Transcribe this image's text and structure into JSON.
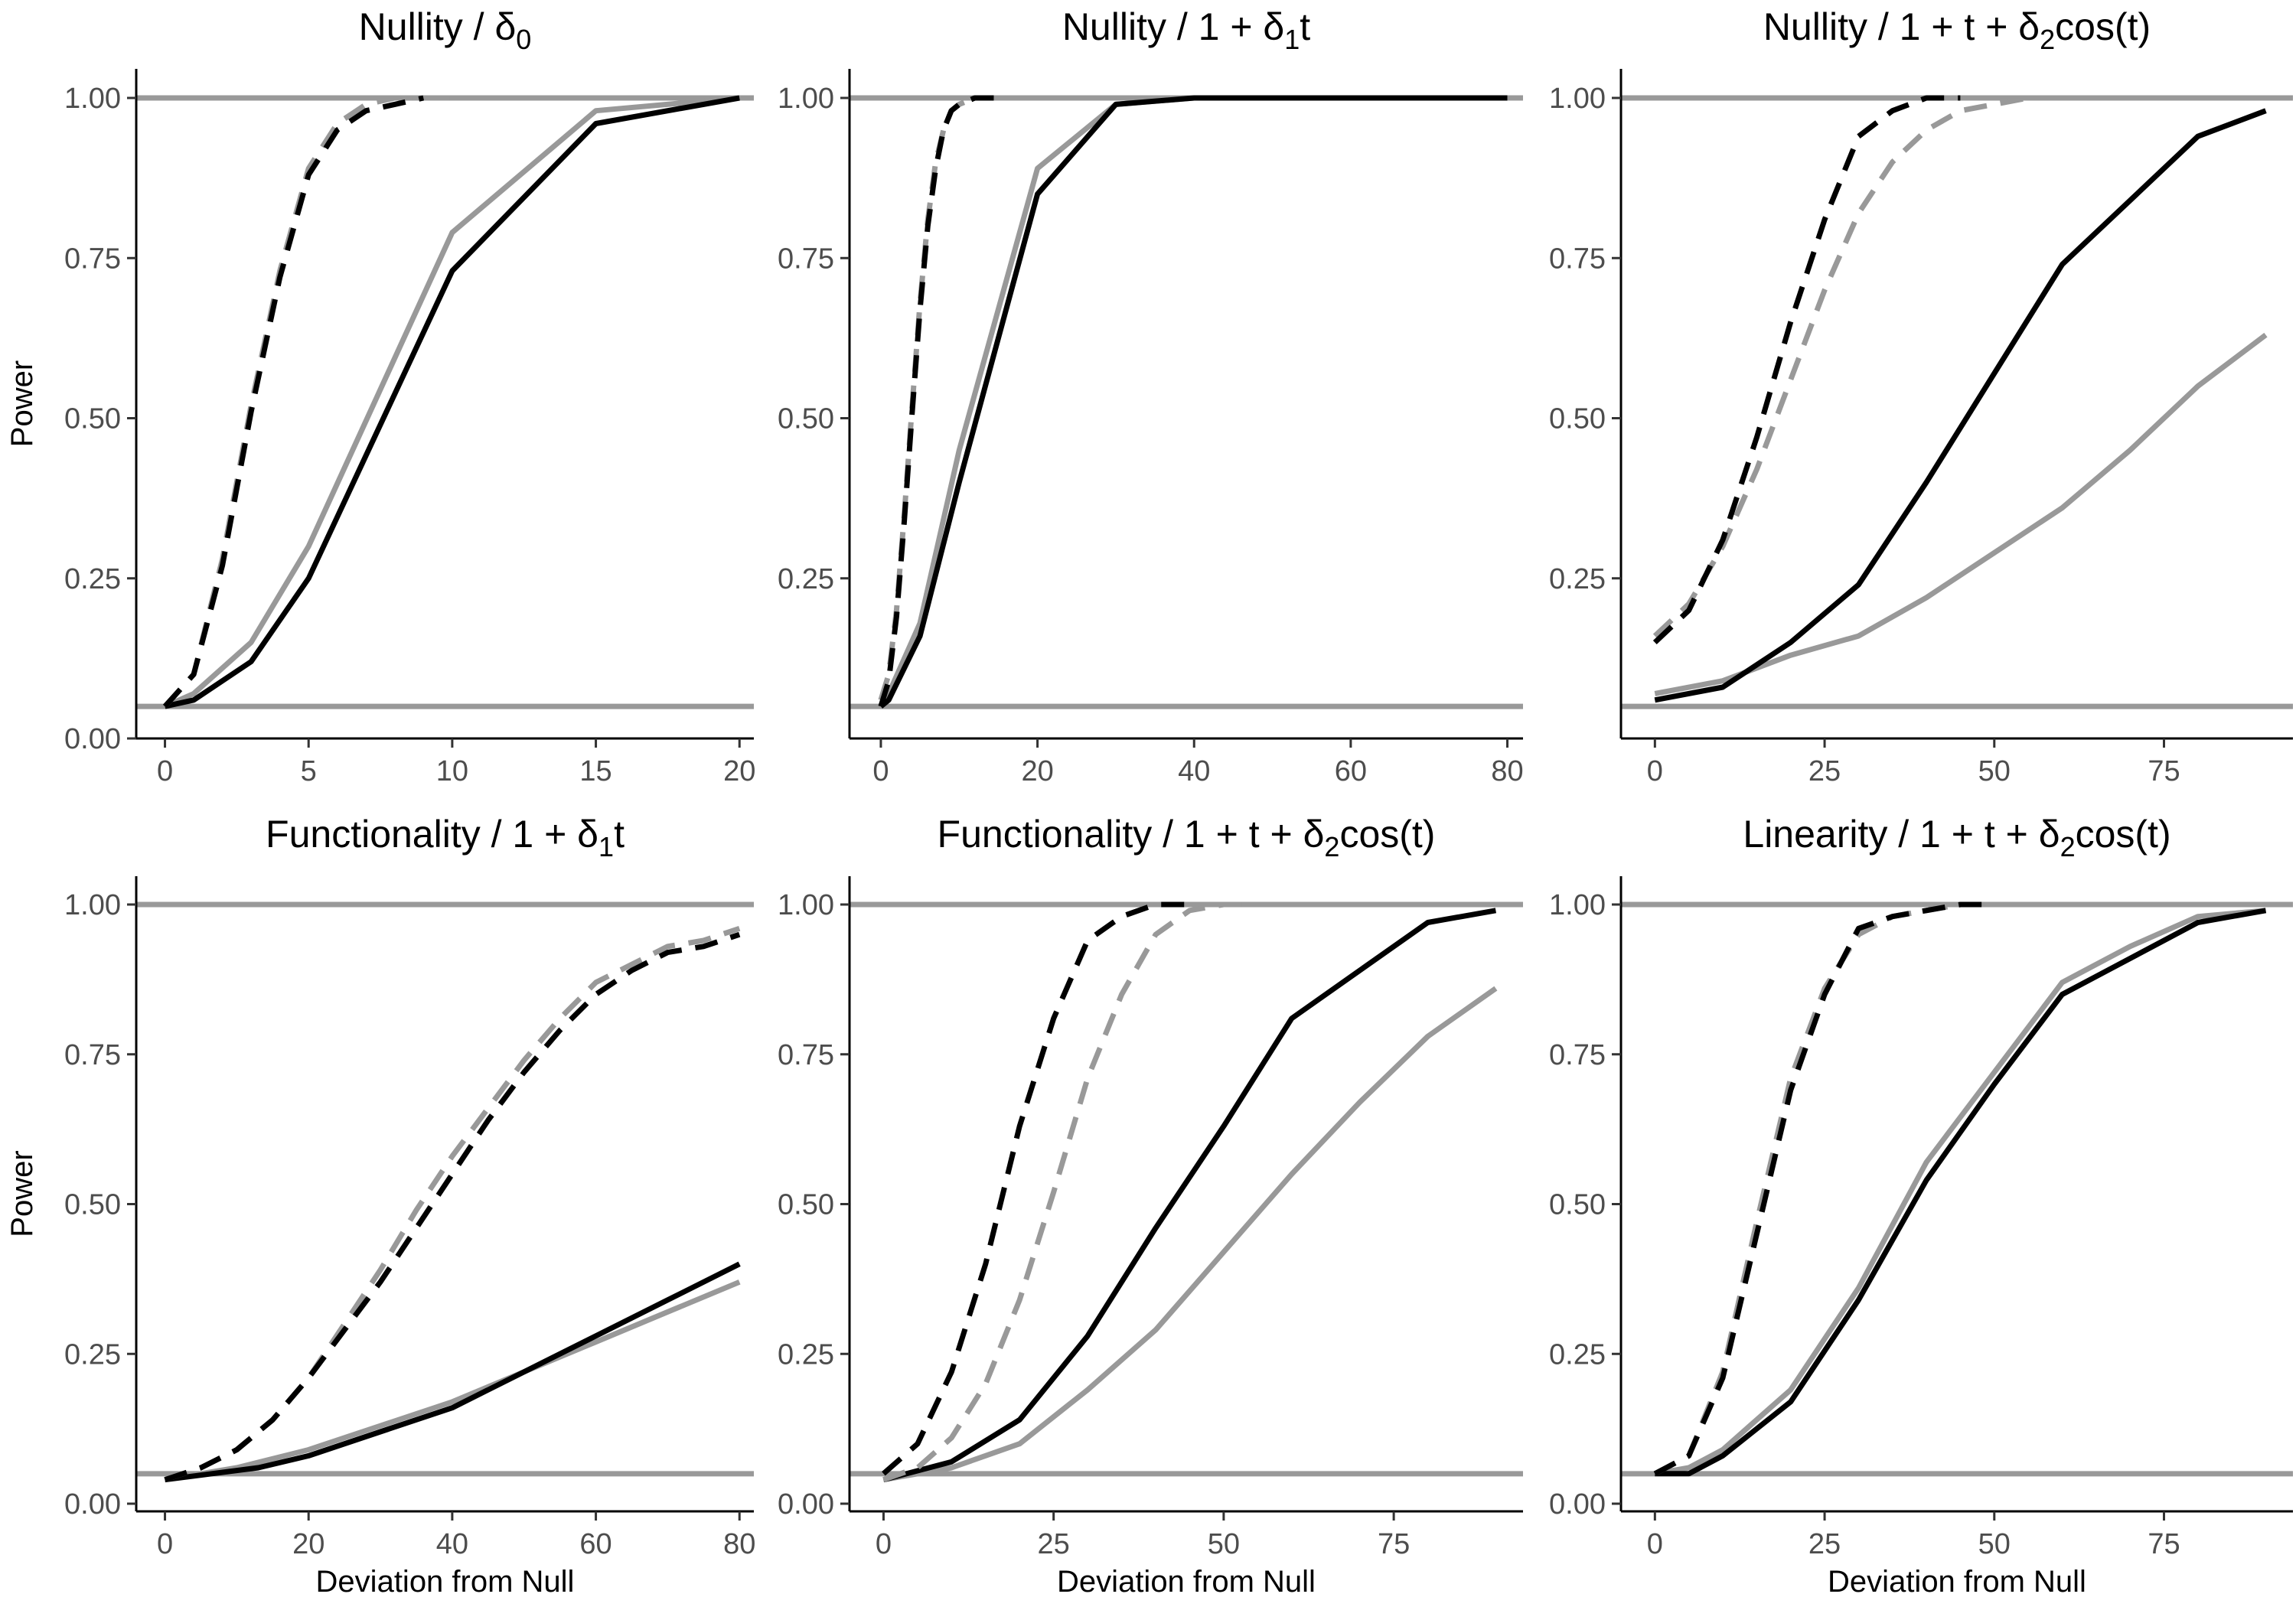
{
  "chart_data": [
    {
      "type": "line",
      "title": "Nullity / δ0",
      "title_parts": [
        {
          "t": "Nullity / δ"
        },
        {
          "t": "0",
          "sub": true
        }
      ],
      "xlabel": "",
      "ylabel": "Power",
      "xlim": [
        -1,
        20.5
      ],
      "ylim": [
        0,
        1.0
      ],
      "x_ticks": [
        0,
        5,
        10,
        15,
        20
      ],
      "y_ticks": [
        0.0,
        0.25,
        0.5,
        0.75,
        1.0
      ],
      "y_tick_labels": [
        "0.00",
        "0.25",
        "0.50",
        "0.75",
        "1.00"
      ],
      "ref_lines": [
        0.05,
        1.0
      ],
      "series": [
        {
          "name": "gray-solid",
          "color": "#999999",
          "dash": false,
          "x": [
            0,
            1,
            3,
            5,
            10,
            15,
            20
          ],
          "y": [
            0.05,
            0.07,
            0.15,
            0.3,
            0.79,
            0.98,
            1.0
          ]
        },
        {
          "name": "black-solid",
          "color": "#000000",
          "dash": false,
          "x": [
            0,
            1,
            3,
            5,
            10,
            15,
            20
          ],
          "y": [
            0.05,
            0.06,
            0.12,
            0.25,
            0.73,
            0.96,
            1.0
          ]
        },
        {
          "name": "gray-dashed",
          "color": "#999999",
          "dash": true,
          "x": [
            0,
            1,
            2,
            3,
            4,
            5,
            6,
            7,
            8,
            10
          ],
          "y": [
            0.05,
            0.1,
            0.28,
            0.52,
            0.73,
            0.89,
            0.96,
            0.99,
            1.0,
            1.0
          ]
        },
        {
          "name": "black-dashed",
          "color": "#000000",
          "dash": true,
          "x": [
            0,
            1,
            2,
            3,
            4,
            5,
            6,
            7,
            8,
            9
          ],
          "y": [
            0.05,
            0.1,
            0.27,
            0.51,
            0.72,
            0.88,
            0.95,
            0.98,
            0.99,
            1.0
          ]
        }
      ]
    },
    {
      "type": "line",
      "title": "Nullity / 1 + δ1t",
      "title_parts": [
        {
          "t": "Nullity / 1 + δ"
        },
        {
          "t": "1",
          "sub": true
        },
        {
          "t": "t"
        }
      ],
      "xlabel": "",
      "ylabel": "",
      "xlim": [
        -4,
        82
      ],
      "ylim": [
        0,
        1.0
      ],
      "x_ticks": [
        0,
        20,
        40,
        60,
        80
      ],
      "y_ticks": [
        0.25,
        0.5,
        0.75,
        1.0
      ],
      "y_tick_labels": [
        "0.25",
        "0.50",
        "0.75",
        "1.00"
      ],
      "ref_lines": [
        0.05,
        1.0
      ],
      "series": [
        {
          "name": "gray-solid",
          "color": "#999999",
          "dash": false,
          "x": [
            0,
            1,
            5,
            10,
            20,
            30,
            40,
            50,
            60,
            70,
            80
          ],
          "y": [
            0.05,
            0.07,
            0.18,
            0.45,
            0.89,
            0.99,
            1.0,
            1.0,
            1.0,
            1.0,
            1.0
          ]
        },
        {
          "name": "black-solid",
          "color": "#000000",
          "dash": false,
          "x": [
            0,
            1,
            5,
            10,
            20,
            30,
            40,
            50,
            60,
            70,
            80
          ],
          "y": [
            0.05,
            0.06,
            0.16,
            0.4,
            0.85,
            0.99,
            1.0,
            1.0,
            1.0,
            1.0,
            1.0
          ]
        },
        {
          "name": "gray-dashed",
          "color": "#999999",
          "dash": true,
          "x": [
            0,
            1,
            2,
            3,
            4,
            5,
            6,
            7,
            8,
            9,
            10,
            12,
            15
          ],
          "y": [
            0.06,
            0.1,
            0.2,
            0.35,
            0.52,
            0.68,
            0.81,
            0.9,
            0.95,
            0.98,
            0.99,
            1.0,
            1.0
          ]
        },
        {
          "name": "black-dashed",
          "color": "#000000",
          "dash": true,
          "x": [
            0,
            1,
            2,
            3,
            4,
            5,
            6,
            7,
            8,
            9,
            10,
            12,
            15
          ],
          "y": [
            0.05,
            0.09,
            0.19,
            0.34,
            0.51,
            0.67,
            0.8,
            0.89,
            0.95,
            0.98,
            0.99,
            1.0,
            1.0
          ]
        }
      ]
    },
    {
      "type": "line",
      "title": "Nullity / 1 + t + δ2cos(t)",
      "title_parts": [
        {
          "t": "Nullity / 1 + t + δ"
        },
        {
          "t": "2",
          "sub": true
        },
        {
          "t": "cos(t)"
        }
      ],
      "xlabel": "",
      "ylabel": "",
      "xlim": [
        -5,
        94
      ],
      "ylim": [
        0,
        1.0
      ],
      "x_ticks": [
        0,
        25,
        50,
        75
      ],
      "y_ticks": [
        0.25,
        0.5,
        0.75,
        1.0
      ],
      "y_tick_labels": [
        "0.25",
        "0.50",
        "0.75",
        "1.00"
      ],
      "ref_lines": [
        0.05,
        1.0
      ],
      "series": [
        {
          "name": "gray-solid",
          "color": "#999999",
          "dash": false,
          "x": [
            0,
            10,
            20,
            30,
            40,
            50,
            60,
            70,
            80,
            90
          ],
          "y": [
            0.07,
            0.09,
            0.13,
            0.16,
            0.22,
            0.29,
            0.36,
            0.45,
            0.55,
            0.63
          ]
        },
        {
          "name": "black-solid",
          "color": "#000000",
          "dash": false,
          "x": [
            0,
            10,
            20,
            30,
            40,
            50,
            60,
            70,
            80,
            90
          ],
          "y": [
            0.06,
            0.08,
            0.15,
            0.24,
            0.4,
            0.57,
            0.74,
            0.84,
            0.94,
            0.98
          ]
        },
        {
          "name": "gray-dashed",
          "color": "#999999",
          "dash": true,
          "x": [
            0,
            5,
            10,
            15,
            20,
            25,
            30,
            35,
            40,
            45,
            50,
            55
          ],
          "y": [
            0.16,
            0.21,
            0.3,
            0.42,
            0.56,
            0.7,
            0.82,
            0.9,
            0.95,
            0.98,
            0.99,
            1.0
          ]
        },
        {
          "name": "black-dashed",
          "color": "#000000",
          "dash": true,
          "x": [
            0,
            5,
            10,
            15,
            20,
            25,
            30,
            35,
            40,
            45
          ],
          "y": [
            0.15,
            0.2,
            0.31,
            0.47,
            0.65,
            0.81,
            0.94,
            0.98,
            1.0,
            1.0
          ]
        }
      ]
    },
    {
      "type": "line",
      "title": "Functionality / 1 + δ1t",
      "title_parts": [
        {
          "t": "Functionality / 1 + δ"
        },
        {
          "t": "1",
          "sub": true
        },
        {
          "t": "t"
        }
      ],
      "xlabel": "Deviation from Null",
      "ylabel": "Power",
      "xlim": [
        -4,
        82
      ],
      "ylim": [
        0,
        1.0
      ],
      "x_ticks": [
        0,
        20,
        40,
        60,
        80
      ],
      "y_ticks": [
        0.0,
        0.25,
        0.5,
        0.75,
        1.0
      ],
      "y_tick_labels": [
        "0.00",
        "0.25",
        "0.50",
        "0.75",
        "1.00"
      ],
      "ref_lines": [
        0.05,
        1.0
      ],
      "series": [
        {
          "name": "gray-solid",
          "color": "#999999",
          "dash": false,
          "x": [
            0,
            10,
            20,
            30,
            40,
            50,
            60,
            70,
            80
          ],
          "y": [
            0.04,
            0.06,
            0.09,
            0.13,
            0.17,
            0.22,
            0.27,
            0.32,
            0.37
          ]
        },
        {
          "name": "black-solid",
          "color": "#000000",
          "dash": false,
          "x": [
            0,
            13,
            20,
            30,
            40,
            50,
            60,
            70,
            80
          ],
          "y": [
            0.04,
            0.06,
            0.08,
            0.12,
            0.16,
            0.22,
            0.28,
            0.34,
            0.4
          ]
        },
        {
          "name": "gray-dashed",
          "color": "#999999",
          "dash": true,
          "x": [
            0,
            5,
            10,
            15,
            20,
            25,
            30,
            35,
            40,
            45,
            50,
            55,
            60,
            65,
            70,
            75,
            80
          ],
          "y": [
            0.04,
            0.06,
            0.09,
            0.14,
            0.21,
            0.3,
            0.39,
            0.49,
            0.58,
            0.66,
            0.74,
            0.81,
            0.87,
            0.9,
            0.93,
            0.94,
            0.96
          ]
        },
        {
          "name": "black-dashed",
          "color": "#000000",
          "dash": true,
          "x": [
            0,
            5,
            10,
            15,
            20,
            25,
            30,
            35,
            40,
            45,
            50,
            55,
            60,
            65,
            70,
            75,
            80
          ],
          "y": [
            0.04,
            0.06,
            0.09,
            0.14,
            0.21,
            0.29,
            0.37,
            0.46,
            0.55,
            0.64,
            0.72,
            0.79,
            0.85,
            0.89,
            0.92,
            0.93,
            0.95
          ]
        }
      ]
    },
    {
      "type": "line",
      "title": "Functionality / 1 + t + δ2cos(t)",
      "title_parts": [
        {
          "t": "Functionality / 1 + t + δ"
        },
        {
          "t": "2",
          "sub": true
        },
        {
          "t": "cos(t)"
        }
      ],
      "xlabel": "Deviation from Null",
      "ylabel": "",
      "xlim": [
        -5,
        94
      ],
      "ylim": [
        0,
        1.0
      ],
      "x_ticks": [
        0,
        25,
        50,
        75
      ],
      "y_ticks": [
        0.0,
        0.25,
        0.5,
        0.75,
        1.0
      ],
      "y_tick_labels": [
        "0.00",
        "0.25",
        "0.50",
        "0.75",
        "1.00"
      ],
      "ref_lines": [
        0.05,
        1.0
      ],
      "series": [
        {
          "name": "gray-solid",
          "color": "#999999",
          "dash": false,
          "x": [
            0,
            10,
            20,
            30,
            40,
            50,
            60,
            70,
            80,
            90
          ],
          "y": [
            0.04,
            0.06,
            0.1,
            0.19,
            0.29,
            0.42,
            0.55,
            0.67,
            0.78,
            0.86
          ]
        },
        {
          "name": "black-solid",
          "color": "#000000",
          "dash": false,
          "x": [
            0,
            10,
            20,
            30,
            40,
            50,
            60,
            70,
            80,
            90
          ],
          "y": [
            0.04,
            0.07,
            0.14,
            0.28,
            0.46,
            0.63,
            0.81,
            0.89,
            0.97,
            0.99
          ]
        },
        {
          "name": "gray-dashed",
          "color": "#999999",
          "dash": true,
          "x": [
            0,
            5,
            10,
            15,
            20,
            25,
            30,
            35,
            40,
            45,
            50,
            55
          ],
          "y": [
            0.04,
            0.06,
            0.11,
            0.2,
            0.34,
            0.52,
            0.71,
            0.85,
            0.95,
            0.99,
            1.0,
            1.0
          ]
        },
        {
          "name": "black-dashed",
          "color": "#000000",
          "dash": true,
          "x": [
            0,
            5,
            10,
            15,
            20,
            25,
            30,
            35,
            40,
            45
          ],
          "y": [
            0.05,
            0.1,
            0.22,
            0.4,
            0.63,
            0.81,
            0.94,
            0.98,
            1.0,
            1.0
          ]
        }
      ]
    },
    {
      "type": "line",
      "title": "Linearity / 1 + t + δ2cos(t)",
      "title_parts": [
        {
          "t": "Linearity / 1 + t + δ"
        },
        {
          "t": "2",
          "sub": true
        },
        {
          "t": "cos(t)"
        }
      ],
      "xlabel": "Deviation from Null",
      "ylabel": "",
      "xlim": [
        -5,
        94
      ],
      "ylim": [
        0,
        1.0
      ],
      "x_ticks": [
        0,
        25,
        50,
        75
      ],
      "y_ticks": [
        0.0,
        0.25,
        0.5,
        0.75,
        1.0
      ],
      "y_tick_labels": [
        "0.00",
        "0.25",
        "0.50",
        "0.75",
        "1.00"
      ],
      "ref_lines": [
        0.05,
        1.0
      ],
      "series": [
        {
          "name": "gray-solid",
          "color": "#999999",
          "dash": false,
          "x": [
            0,
            5,
            10,
            20,
            30,
            40,
            50,
            60,
            70,
            80,
            90
          ],
          "y": [
            0.05,
            0.06,
            0.09,
            0.19,
            0.36,
            0.57,
            0.72,
            0.87,
            0.93,
            0.98,
            0.99
          ]
        },
        {
          "name": "black-solid",
          "color": "#000000",
          "dash": false,
          "x": [
            0,
            5,
            10,
            20,
            30,
            40,
            50,
            60,
            70,
            80,
            90
          ],
          "y": [
            0.05,
            0.05,
            0.08,
            0.17,
            0.34,
            0.54,
            0.7,
            0.85,
            0.91,
            0.97,
            0.99
          ]
        },
        {
          "name": "gray-dashed",
          "color": "#999999",
          "dash": true,
          "x": [
            0,
            5,
            10,
            15,
            20,
            25,
            30,
            35,
            40,
            45,
            50
          ],
          "y": [
            0.05,
            0.08,
            0.22,
            0.47,
            0.71,
            0.86,
            0.95,
            0.98,
            0.99,
            1.0,
            1.0
          ]
        },
        {
          "name": "black-dashed",
          "color": "#000000",
          "dash": true,
          "x": [
            0,
            5,
            10,
            15,
            20,
            25,
            30,
            35,
            40,
            45,
            50
          ],
          "y": [
            0.05,
            0.08,
            0.21,
            0.45,
            0.69,
            0.85,
            0.96,
            0.98,
            0.99,
            1.0,
            1.0
          ]
        }
      ]
    }
  ]
}
